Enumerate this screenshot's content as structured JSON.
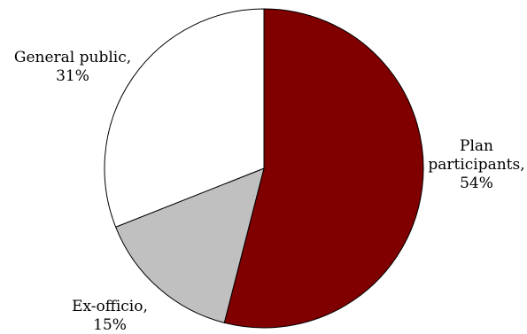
{
  "chart_data": {
    "type": "pie",
    "slices": [
      {
        "label_lines": [
          "Plan",
          "participants,",
          "54%"
        ],
        "value": 54,
        "color": "#800000"
      },
      {
        "label_lines": [
          "Ex-officio,",
          "15%"
        ],
        "value": 15,
        "color": "#c0c0c0"
      },
      {
        "label_lines": [
          "General public,",
          "31%"
        ],
        "value": 31,
        "color": "#ffffff"
      }
    ],
    "start_angle": "top",
    "direction": "clockwise",
    "legend": "none",
    "edge_color": "#000000"
  }
}
